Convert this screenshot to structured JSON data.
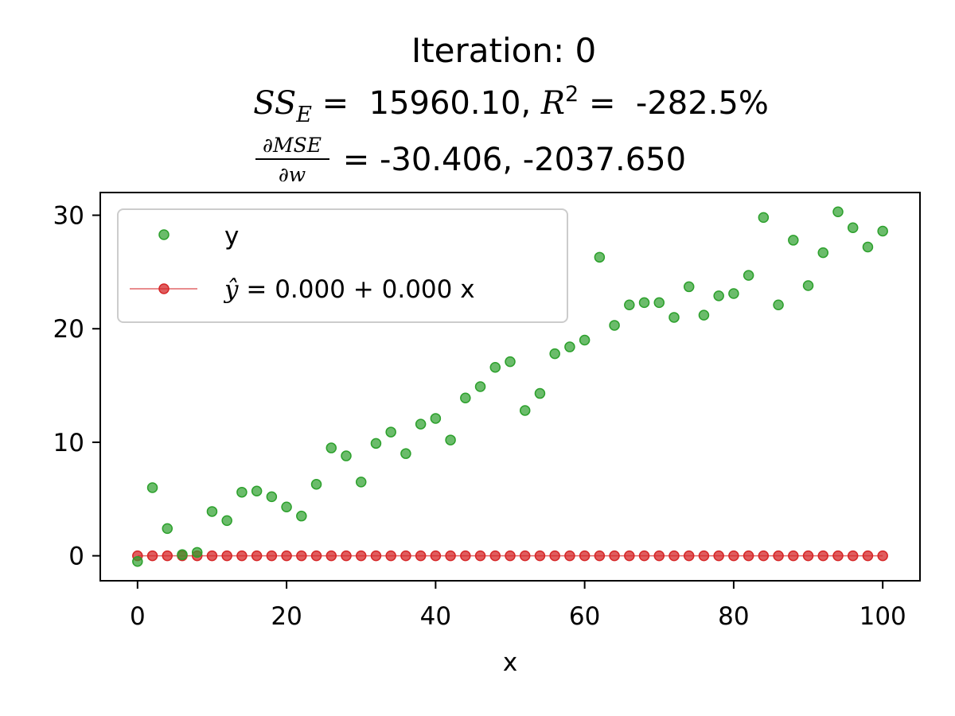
{
  "chart_data": {
    "type": "scatter",
    "title": {
      "line1": "Iteration: 0",
      "sse_label": "SS",
      "sse_sub": "E",
      "sse_eq": " =  ",
      "sse_value": "15960.10",
      "sep": ", ",
      "r2_label": "R",
      "r2_sup": "2",
      "r2_eq": " =  ",
      "r2_value": "-282.5%",
      "grad_num": "∂MSE",
      "grad_den": "∂w",
      "grad_eq": " = ",
      "grad_values": "-30.406, -2037.650"
    },
    "xlabel": "x",
    "ylabel": "",
    "xlim": [
      -5,
      105
    ],
    "ylim": [
      -2.2,
      32
    ],
    "xticks": [
      0,
      20,
      40,
      60,
      80,
      100
    ],
    "yticks": [
      0,
      10,
      20,
      30
    ],
    "grid": false,
    "legend": {
      "position": "upper-left",
      "y_label": "y",
      "fit_hat": "ŷ",
      "fit_eq": " = ",
      "fit_rest": "0.000 + 0.000 x"
    },
    "colors": {
      "observed": "#2ca02c",
      "fit": "#d62728"
    },
    "series": [
      {
        "name": "y",
        "x": [
          0,
          2,
          4,
          6,
          8,
          10,
          12,
          14,
          16,
          18,
          20,
          22,
          24,
          26,
          28,
          30,
          32,
          34,
          36,
          38,
          40,
          42,
          44,
          46,
          48,
          50,
          52,
          54,
          56,
          58,
          60,
          62,
          64,
          66,
          68,
          70,
          72,
          74,
          76,
          78,
          80,
          82,
          84,
          86,
          88,
          90,
          92,
          94,
          96,
          98,
          100
        ],
        "values": [
          -0.5,
          6.0,
          2.4,
          0.1,
          0.3,
          3.9,
          3.1,
          5.6,
          5.7,
          5.2,
          4.3,
          3.5,
          6.3,
          9.5,
          8.8,
          6.5,
          9.9,
          10.9,
          9.0,
          11.6,
          12.1,
          10.2,
          13.9,
          14.9,
          16.6,
          17.1,
          12.8,
          14.3,
          17.8,
          18.4,
          19.0,
          26.3,
          20.3,
          22.1,
          22.3,
          22.3,
          21.0,
          23.7,
          21.2,
          22.9,
          23.1,
          24.7,
          29.8,
          22.1,
          27.8,
          23.8,
          26.7,
          30.3,
          28.9,
          27.2,
          28.6
        ]
      },
      {
        "name": "ŷ = 0.000 + 0.000 x",
        "x": [
          0,
          2,
          4,
          6,
          8,
          10,
          12,
          14,
          16,
          18,
          20,
          22,
          24,
          26,
          28,
          30,
          32,
          34,
          36,
          38,
          40,
          42,
          44,
          46,
          48,
          50,
          52,
          54,
          56,
          58,
          60,
          62,
          64,
          66,
          68,
          70,
          72,
          74,
          76,
          78,
          80,
          82,
          84,
          86,
          88,
          90,
          92,
          94,
          96,
          98,
          100
        ],
        "values": [
          0,
          0,
          0,
          0,
          0,
          0,
          0,
          0,
          0,
          0,
          0,
          0,
          0,
          0,
          0,
          0,
          0,
          0,
          0,
          0,
          0,
          0,
          0,
          0,
          0,
          0,
          0,
          0,
          0,
          0,
          0,
          0,
          0,
          0,
          0,
          0,
          0,
          0,
          0,
          0,
          0,
          0,
          0,
          0,
          0,
          0,
          0,
          0,
          0,
          0,
          0
        ]
      }
    ]
  }
}
